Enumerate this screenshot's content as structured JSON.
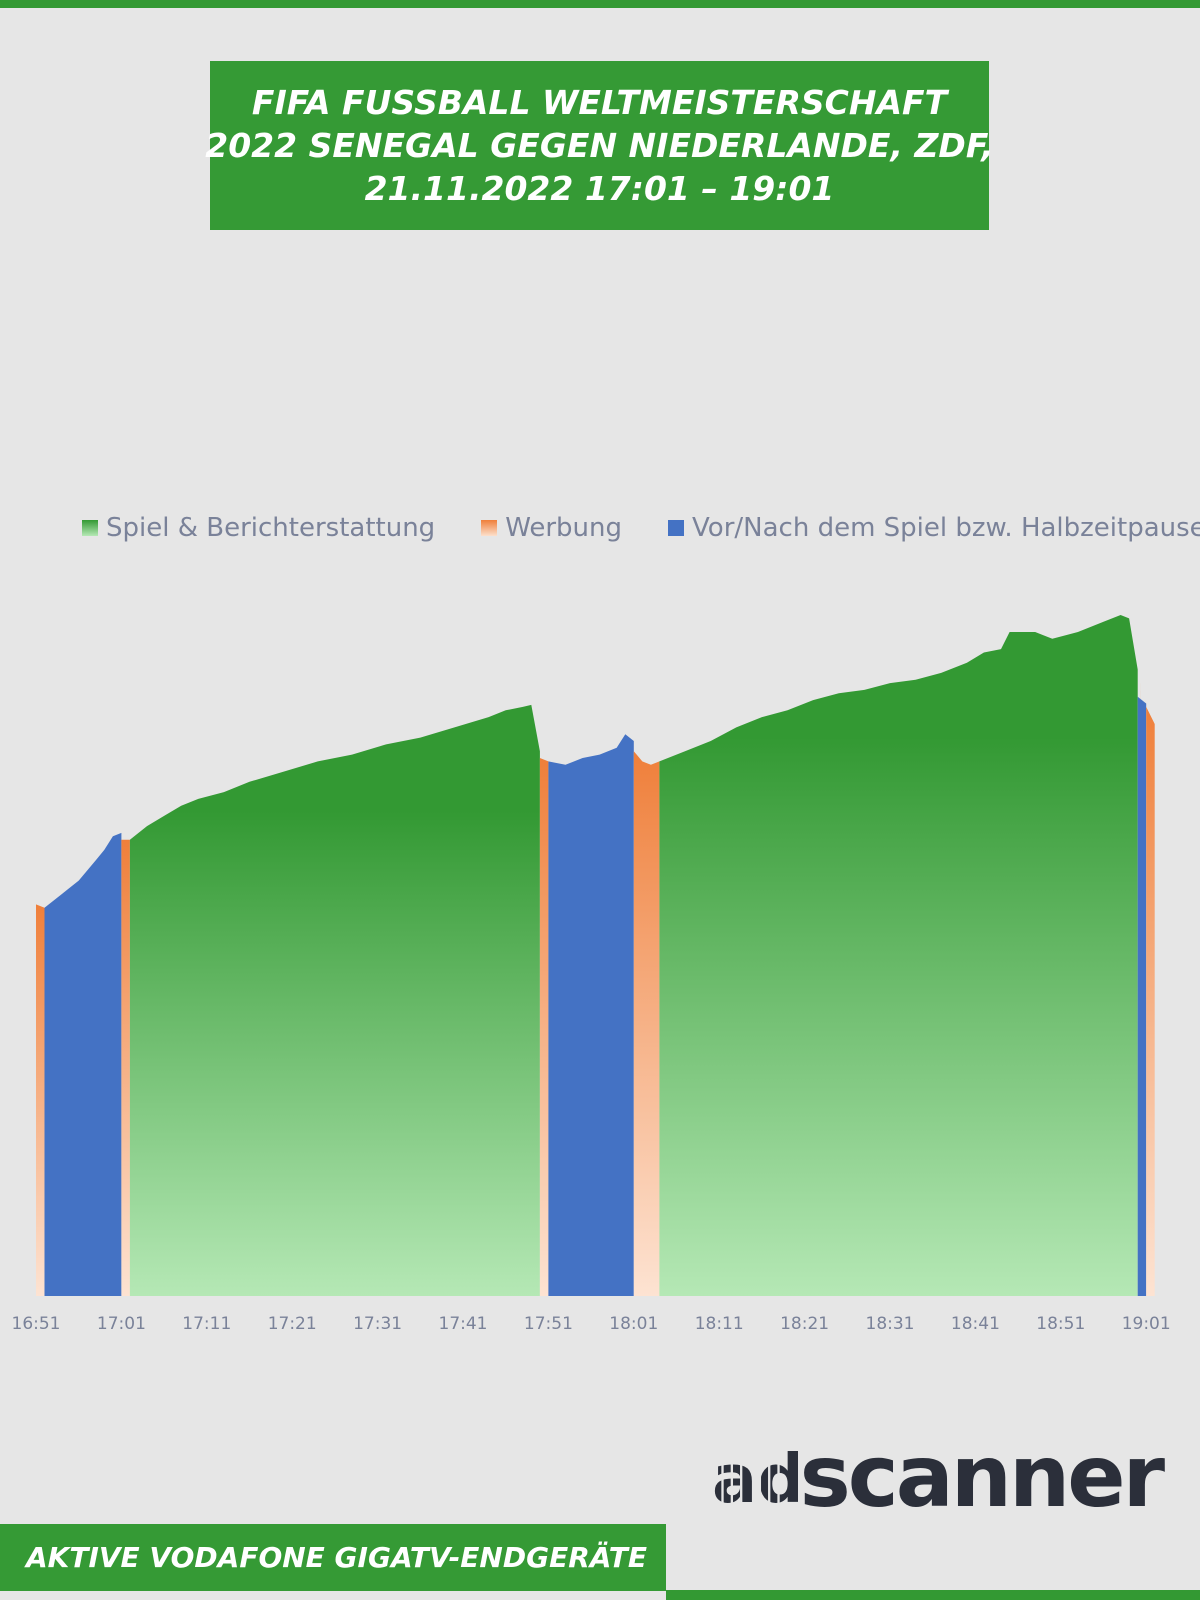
{
  "header": {
    "title_lines": [
      "FIFA FUSSBALL WELTMEISTERSCHAFT",
      "2022 SENEGAL GEGEN NIEDERLANDE, ZDF,",
      "21.11.2022 17:01 – 19:01"
    ]
  },
  "footer": {
    "label": "AKTIVE VODAFONE GIGATV-ENDGERÄTE"
  },
  "logo": {
    "text": "scanner",
    "mark": "ad"
  },
  "colors": {
    "green": "#339933",
    "orange": "#ef7f3a",
    "blue": "#4472c4",
    "background": "#e6e6e6",
    "logo": "#2b2f3a"
  },
  "chart_data": {
    "type": "area",
    "title": "FIFA FUSSBALL WELTMEISTERSCHAFT 2022 SENEGAL GEGEN NIEDERLANDE, ZDF, 21.11.2022 17:01 – 19:01",
    "xlabel": "",
    "ylabel": "",
    "y_axis": "unlabeled",
    "grid": false,
    "legend_position": "top",
    "x_ticks": [
      "16:51",
      "17:01",
      "17:11",
      "17:21",
      "17:31",
      "17:41",
      "17:51",
      "18:01",
      "18:11",
      "18:21",
      "18:31",
      "18:41",
      "18:51",
      "19:01"
    ],
    "series": [
      {
        "name": "Spiel & Berichterstattung",
        "color": "#339933"
      },
      {
        "name": "Werbung",
        "color": "#ef7f3a"
      },
      {
        "name": "Vor/Nach dem Spiel bzw. Halbzeitpause",
        "color": "#4472c4"
      }
    ],
    "segments": [
      {
        "series": "Werbung",
        "start": "16:51",
        "end": "16:52",
        "points": [
          [
            "16:51",
            0.575
          ],
          [
            "16:52",
            0.57
          ]
        ]
      },
      {
        "series": "Vor/Nach dem Spiel bzw. Halbzeitpause",
        "start": "16:52",
        "end": "17:01",
        "points": [
          [
            "16:52",
            0.57
          ],
          [
            "16:54",
            0.59
          ],
          [
            "16:56",
            0.61
          ],
          [
            "16:58",
            0.64
          ],
          [
            "16:59",
            0.655
          ],
          [
            "17:00",
            0.675
          ],
          [
            "17:01",
            0.68
          ]
        ]
      },
      {
        "series": "Werbung",
        "start": "17:01",
        "end": "17:02",
        "points": [
          [
            "17:01",
            0.67
          ],
          [
            "17:02",
            0.67
          ]
        ]
      },
      {
        "series": "Spiel & Berichterstattung",
        "start": "17:02",
        "end": "17:50",
        "points": [
          [
            "17:02",
            0.67
          ],
          [
            "17:04",
            0.69
          ],
          [
            "17:06",
            0.705
          ],
          [
            "17:08",
            0.72
          ],
          [
            "17:10",
            0.73
          ],
          [
            "17:13",
            0.74
          ],
          [
            "17:16",
            0.755
          ],
          [
            "17:20",
            0.77
          ],
          [
            "17:24",
            0.785
          ],
          [
            "17:28",
            0.795
          ],
          [
            "17:32",
            0.81
          ],
          [
            "17:36",
            0.82
          ],
          [
            "17:40",
            0.835
          ],
          [
            "17:44",
            0.85
          ],
          [
            "17:46",
            0.86
          ],
          [
            "17:48",
            0.865
          ],
          [
            "17:49",
            0.868
          ],
          [
            "17:50",
            0.8
          ]
        ]
      },
      {
        "series": "Werbung",
        "start": "17:50",
        "end": "17:51",
        "points": [
          [
            "17:50",
            0.79
          ],
          [
            "17:51",
            0.785
          ]
        ]
      },
      {
        "series": "Vor/Nach dem Spiel bzw. Halbzeitpause",
        "start": "17:51",
        "end": "18:01",
        "points": [
          [
            "17:51",
            0.785
          ],
          [
            "17:53",
            0.78
          ],
          [
            "17:55",
            0.79
          ],
          [
            "17:57",
            0.795
          ],
          [
            "17:59",
            0.805
          ],
          [
            "18:00",
            0.825
          ],
          [
            "18:01",
            0.815
          ]
        ]
      },
      {
        "series": "Werbung",
        "start": "18:01",
        "end": "18:04",
        "points": [
          [
            "18:01",
            0.8
          ],
          [
            "18:02",
            0.785
          ],
          [
            "18:03",
            0.78
          ],
          [
            "18:04",
            0.785
          ]
        ]
      },
      {
        "series": "Spiel & Berichterstattung",
        "start": "18:04",
        "end": "19:00",
        "points": [
          [
            "18:04",
            0.785
          ],
          [
            "18:07",
            0.8
          ],
          [
            "18:10",
            0.815
          ],
          [
            "18:13",
            0.835
          ],
          [
            "18:16",
            0.85
          ],
          [
            "18:19",
            0.86
          ],
          [
            "18:22",
            0.875
          ],
          [
            "18:25",
            0.885
          ],
          [
            "18:28",
            0.89
          ],
          [
            "18:31",
            0.9
          ],
          [
            "18:34",
            0.905
          ],
          [
            "18:37",
            0.915
          ],
          [
            "18:40",
            0.93
          ],
          [
            "18:42",
            0.945
          ],
          [
            "18:44",
            0.95
          ],
          [
            "18:45",
            0.975
          ],
          [
            "18:48",
            0.975
          ],
          [
            "18:50",
            0.965
          ],
          [
            "18:53",
            0.975
          ],
          [
            "18:56",
            0.99
          ],
          [
            "18:58",
            1.0
          ],
          [
            "18:59",
            0.995
          ],
          [
            "19:00",
            0.92
          ]
        ]
      },
      {
        "series": "Werbung",
        "start": "19:00",
        "end": "19:00.3",
        "points": [
          [
            "19:00",
            0.91
          ]
        ]
      },
      {
        "series": "Vor/Nach dem Spiel bzw. Halbzeitpause",
        "start": "19:00",
        "end": "19:01",
        "points": [
          [
            "19:00",
            0.88
          ],
          [
            "19:01",
            0.87
          ]
        ]
      },
      {
        "series": "Werbung",
        "start": "19:01",
        "end": "19:02",
        "points": [
          [
            "19:01",
            0.865
          ],
          [
            "19:02",
            0.84
          ]
        ]
      }
    ]
  }
}
